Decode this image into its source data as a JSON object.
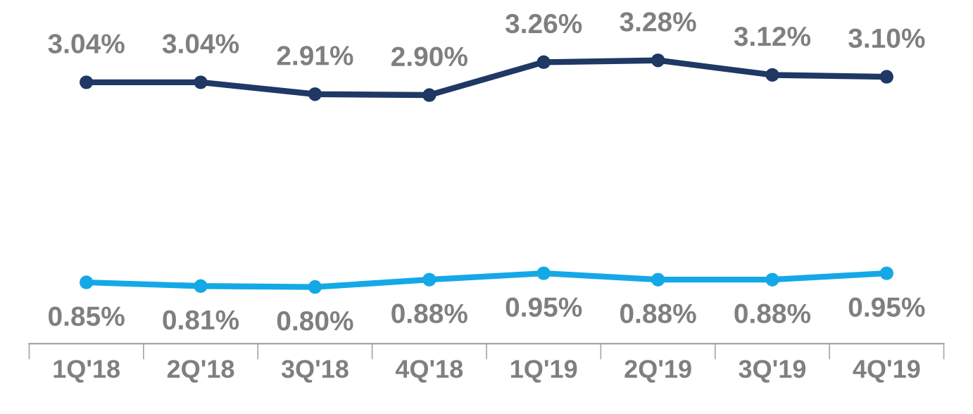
{
  "chart_data": {
    "type": "line",
    "categories": [
      "1Q'18",
      "2Q'18",
      "3Q'18",
      "4Q'18",
      "1Q'19",
      "2Q'19",
      "3Q'19",
      "4Q'19"
    ],
    "series": [
      {
        "color": "#1f3864",
        "values": [
          3.04,
          3.04,
          2.91,
          2.9,
          3.26,
          3.28,
          3.12,
          3.1
        ],
        "value_labels": [
          "3.04%",
          "3.04%",
          "2.91%",
          "2.90%",
          "3.26%",
          "3.28%",
          "3.12%",
          "3.10%"
        ]
      },
      {
        "color": "#14a9e6",
        "values": [
          0.85,
          0.81,
          0.8,
          0.88,
          0.95,
          0.88,
          0.88,
          0.95
        ],
        "value_labels": [
          "0.85%",
          "0.81%",
          "0.80%",
          "0.88%",
          "0.95%",
          "0.88%",
          "0.88%",
          "0.95%"
        ]
      }
    ],
    "marker": "circle",
    "line_style": "solid",
    "grid": false,
    "legend": false,
    "tick_labels": "x"
  }
}
